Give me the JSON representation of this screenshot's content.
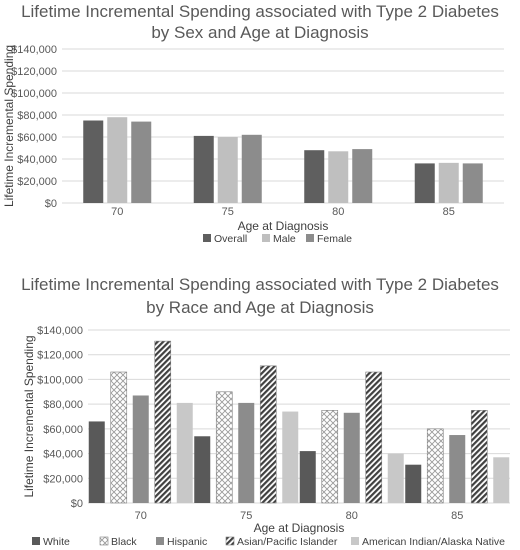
{
  "chart_data": [
    {
      "type": "bar",
      "title": [
        "Lifetime Incremental Spending associated with Type 2 Diabetes",
        "by Sex and Age at Diagnosis"
      ],
      "xlabel": "Age at Diagnosis",
      "ylabel": "Lifetime Incremental Spending",
      "ylim": [
        0,
        140000
      ],
      "yticks": [
        "$0",
        "$20,000",
        "$40,000",
        "$60,000",
        "$80,000",
        "$100,000",
        "$120,000",
        "$140,000"
      ],
      "grid": true,
      "legend_position": "bottom",
      "categories": [
        "70",
        "75",
        "80",
        "85"
      ],
      "series": [
        {
          "name": "Overall",
          "values": [
            75000,
            61000,
            48000,
            36000
          ],
          "color": "#5f5f5f",
          "pattern": "solid"
        },
        {
          "name": "Male",
          "values": [
            78000,
            60000,
            47000,
            36500
          ],
          "color": "#bfbfbf",
          "pattern": "solid"
        },
        {
          "name": "Female",
          "values": [
            74000,
            62000,
            49000,
            36000
          ],
          "color": "#8c8c8c",
          "pattern": "solid"
        }
      ]
    },
    {
      "type": "bar",
      "title": [
        "Lifetime Incremental Spending associated with Type 2 Diabetes",
        "by Race and Age at Diagnosis"
      ],
      "xlabel": "Age at Diagnosis",
      "ylabel": "Lifetime Incremental Spending",
      "ylim": [
        0,
        140000
      ],
      "yticks": [
        "$0",
        "$20,000",
        "$40,000",
        "$60,000",
        "$80,000",
        "$100,000",
        "$120,000",
        "$140,000"
      ],
      "grid": true,
      "legend_position": "bottom",
      "categories": [
        "70",
        "75",
        "80",
        "85"
      ],
      "series": [
        {
          "name": "White",
          "values": [
            66000,
            54000,
            42000,
            31000
          ],
          "color": "#595959",
          "pattern": "solid"
        },
        {
          "name": "Black",
          "values": [
            106000,
            90000,
            75000,
            60000
          ],
          "color": "#a6a6a6",
          "pattern": "crosshatch"
        },
        {
          "name": "Hispanic",
          "values": [
            87000,
            81000,
            73000,
            55000
          ],
          "color": "#8c8c8c",
          "pattern": "solid"
        },
        {
          "name": "Asian/Pacific Islander",
          "values": [
            131000,
            111000,
            106000,
            75000
          ],
          "color": "#404040",
          "pattern": "diagonal"
        },
        {
          "name": "American Indian/Alaska Native",
          "values": [
            81000,
            74000,
            40000,
            37000
          ],
          "color": "#c8c8c8",
          "pattern": "solid"
        }
      ]
    }
  ]
}
